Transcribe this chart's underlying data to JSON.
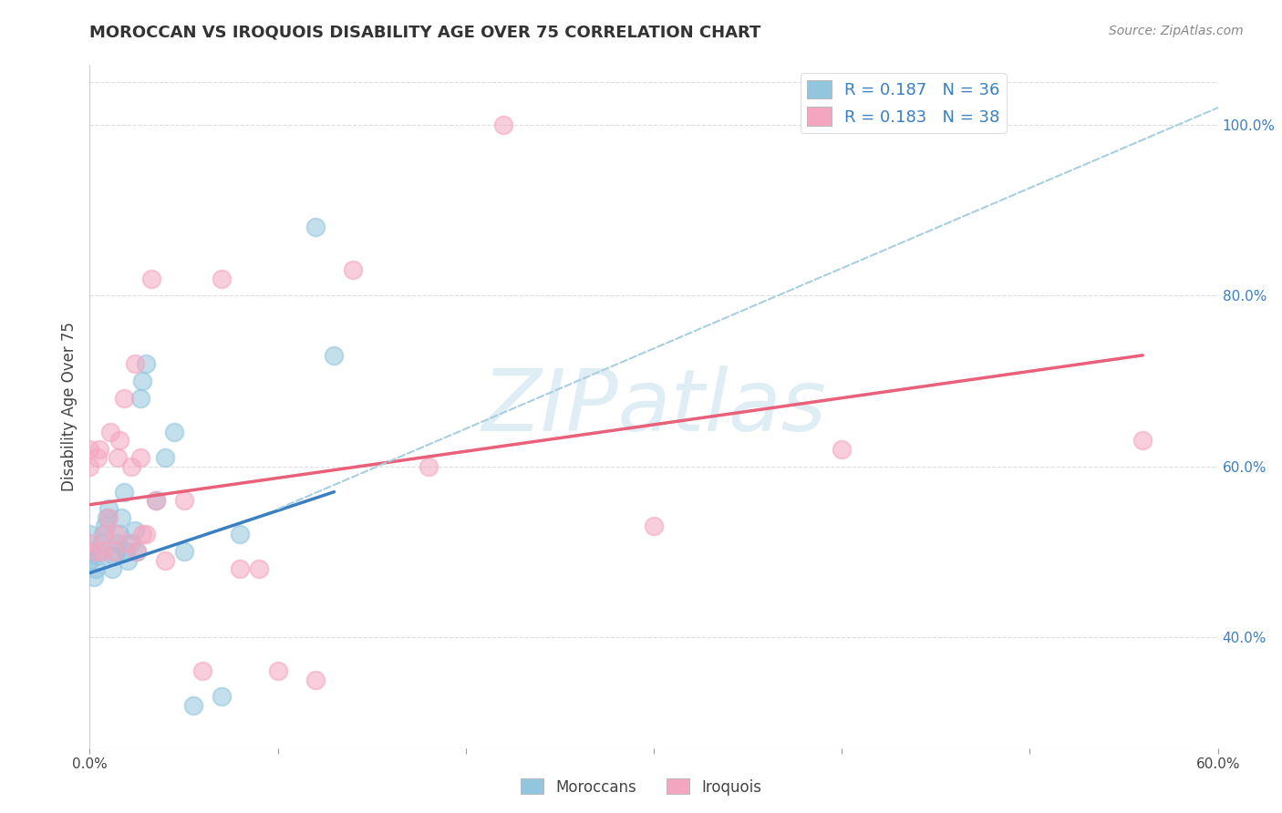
{
  "title": "MOROCCAN VS IROQUOIS DISABILITY AGE OVER 75 CORRELATION CHART",
  "source": "Source: ZipAtlas.com",
  "ylabel_label": "Disability Age Over 75",
  "xlim": [
    0.0,
    0.6
  ],
  "ylim": [
    0.27,
    1.07
  ],
  "x_tick_positions": [
    0.0,
    0.1,
    0.2,
    0.3,
    0.4,
    0.5,
    0.6
  ],
  "x_tick_labels": [
    "0.0%",
    "",
    "",
    "",
    "",
    "",
    "60.0%"
  ],
  "y_ticks_right": [
    0.4,
    0.6,
    0.8,
    1.0
  ],
  "y_tick_labels_right": [
    "40.0%",
    "60.0%",
    "80.0%",
    "100.0%"
  ],
  "moroccan_color": "#92c5de",
  "iroquois_color": "#f4a6c0",
  "moroccan_line_color": "#3a7fc1",
  "iroquois_line_color": "#e8607a",
  "dashed_line_color": "#a8cfe0",
  "watermark": "ZIPatlas",
  "legend_R_moroccan": "R = 0.187",
  "legend_N_moroccan": "N = 36",
  "legend_R_iroquois": "R = 0.183",
  "legend_N_iroquois": "N = 38",
  "moroccan_x": [
    0.0,
    0.0,
    0.0,
    0.002,
    0.003,
    0.004,
    0.005,
    0.006,
    0.007,
    0.008,
    0.009,
    0.01,
    0.012,
    0.013,
    0.014,
    0.015,
    0.016,
    0.017,
    0.018,
    0.019,
    0.02,
    0.022,
    0.024,
    0.025,
    0.027,
    0.028,
    0.03,
    0.035,
    0.04,
    0.045,
    0.05,
    0.055,
    0.07,
    0.08,
    0.12,
    0.13
  ],
  "moroccan_y": [
    0.49,
    0.5,
    0.52,
    0.47,
    0.48,
    0.495,
    0.5,
    0.51,
    0.52,
    0.53,
    0.54,
    0.55,
    0.48,
    0.495,
    0.5,
    0.51,
    0.52,
    0.54,
    0.57,
    0.5,
    0.49,
    0.51,
    0.525,
    0.5,
    0.68,
    0.7,
    0.72,
    0.56,
    0.61,
    0.64,
    0.5,
    0.32,
    0.33,
    0.52,
    0.88,
    0.73
  ],
  "iroquois_x": [
    0.0,
    0.0,
    0.0,
    0.003,
    0.004,
    0.005,
    0.007,
    0.008,
    0.01,
    0.011,
    0.013,
    0.014,
    0.015,
    0.016,
    0.018,
    0.02,
    0.022,
    0.024,
    0.025,
    0.027,
    0.028,
    0.03,
    0.033,
    0.035,
    0.04,
    0.05,
    0.06,
    0.07,
    0.08,
    0.09,
    0.1,
    0.12,
    0.14,
    0.18,
    0.22,
    0.3,
    0.4,
    0.56
  ],
  "iroquois_y": [
    0.51,
    0.6,
    0.62,
    0.5,
    0.61,
    0.62,
    0.5,
    0.52,
    0.54,
    0.64,
    0.5,
    0.52,
    0.61,
    0.63,
    0.68,
    0.51,
    0.6,
    0.72,
    0.5,
    0.61,
    0.52,
    0.52,
    0.82,
    0.56,
    0.49,
    0.56,
    0.36,
    0.82,
    0.48,
    0.48,
    0.36,
    0.35,
    0.83,
    0.6,
    1.0,
    0.53,
    0.62,
    0.63
  ],
  "moroccan_trend_x": [
    0.0,
    0.13
  ],
  "moroccan_trend_y": [
    0.475,
    0.57
  ],
  "iroquois_trend_x": [
    0.0,
    0.56
  ],
  "iroquois_trend_y": [
    0.555,
    0.73
  ],
  "dashed_trend_x": [
    0.1,
    0.6
  ],
  "dashed_trend_y": [
    0.55,
    1.02
  ],
  "background_color": "#ffffff",
  "grid_color": "#cccccc",
  "legend_color": "#3a7fc1"
}
